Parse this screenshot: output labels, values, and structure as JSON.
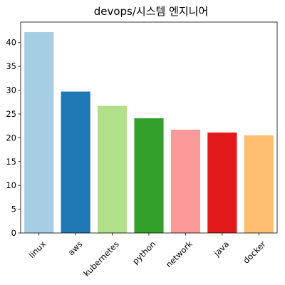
{
  "chart_data": {
    "type": "bar",
    "title": "devops/시스템 엔지니어",
    "xlabel": "",
    "ylabel": "",
    "categories": [
      "linux",
      "aws",
      "kubernetes",
      "python",
      "network",
      "java",
      "docker"
    ],
    "values": [
      42.2,
      29.7,
      26.7,
      24.1,
      21.7,
      21.1,
      20.5
    ],
    "colors": [
      "#a6cee3",
      "#1f78b4",
      "#b2df8a",
      "#33a02c",
      "#fb9a99",
      "#e31a1c",
      "#fdbf6f"
    ],
    "ylim": [
      0,
      44.3
    ],
    "yticks": [
      0,
      5,
      10,
      15,
      20,
      25,
      30,
      35,
      40
    ],
    "xtick_rotation": 45,
    "grid": false,
    "legend": "none"
  }
}
